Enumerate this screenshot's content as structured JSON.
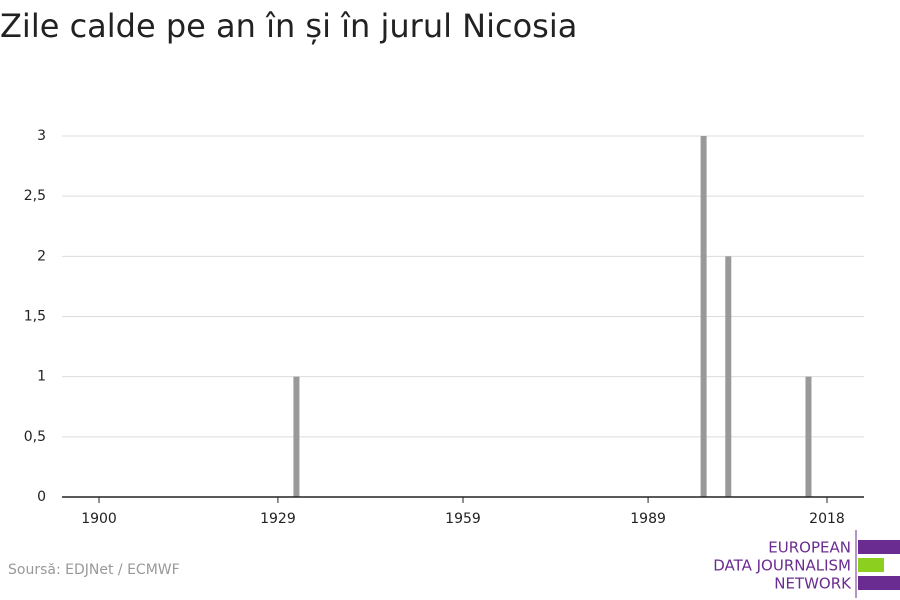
{
  "chart_data": {
    "type": "bar",
    "title": "Zile calde pe an în și în jurul Nicosia",
    "x": [
      1932,
      1998,
      2002,
      2015
    ],
    "values": [
      1,
      3,
      2,
      1
    ],
    "color": "#999999",
    "xlim": [
      1894,
      2024
    ],
    "xticks": [
      1900,
      1929,
      1959,
      1989,
      2018
    ],
    "ylim": [
      0,
      3
    ],
    "yticks": [
      0,
      {
        "value": 0.5,
        "label": "0,5"
      },
      1,
      {
        "value": 1.5,
        "label": "1,5"
      },
      2,
      {
        "value": 2.5,
        "label": "2,5"
      },
      3
    ],
    "grid": true,
    "source": "Soursă: EDJNet / ECMWF",
    "logo": [
      "EUROPEAN",
      "DATA JOURNALISM",
      "NETWORK"
    ]
  }
}
